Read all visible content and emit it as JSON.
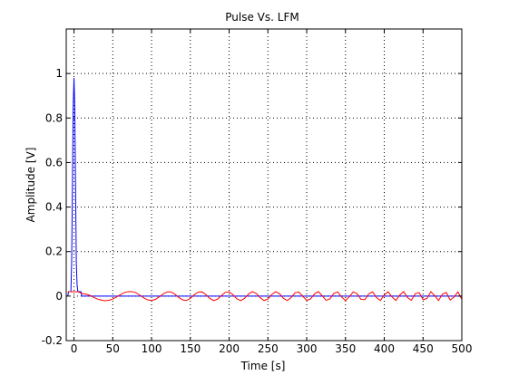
{
  "chart_data": {
    "type": "line",
    "title": "Pulse Vs. LFM",
    "xlabel": "Time [s]",
    "ylabel": "Amplitude [V]",
    "xlim": [
      -10,
      500
    ],
    "ylim": [
      -0.2,
      1.2
    ],
    "xticks": [
      0,
      50,
      100,
      150,
      200,
      250,
      300,
      350,
      400,
      450,
      500
    ],
    "yticks": [
      -0.2,
      0,
      0.2,
      0.4,
      0.6,
      0.8,
      1
    ],
    "ytick_labels": [
      "-0.2",
      "0",
      "0.2",
      "0.4",
      "0.6",
      "0.8",
      "1"
    ],
    "grid": true,
    "grid_style": "dotted",
    "legend": "none",
    "series": [
      {
        "color": "#0000ff",
        "x": [
          -8,
          -7,
          -6,
          -5,
          -4,
          -3,
          -2,
          -1,
          0,
          1,
          2,
          3,
          4,
          5,
          6,
          7,
          8,
          9,
          10,
          500
        ],
        "y": [
          0,
          0.02,
          0.02,
          0.02,
          0.02,
          0.15,
          0.5,
          0.85,
          0.98,
          0.85,
          0.5,
          0.15,
          0.05,
          0.02,
          0.02,
          0.02,
          0.02,
          0.02,
          0,
          0
        ]
      },
      {
        "color": "#ff0000",
        "x": [
          -8,
          0,
          5,
          10,
          15,
          20,
          25,
          30,
          35,
          40,
          45,
          50,
          55,
          60,
          65,
          70,
          75,
          80,
          85,
          90,
          95,
          100,
          105,
          110,
          115,
          120,
          125,
          130,
          135,
          140,
          145,
          150,
          155,
          160,
          165,
          170,
          175,
          180,
          185,
          190,
          195,
          200,
          205,
          210,
          215,
          220,
          225,
          230,
          235,
          240,
          245,
          250,
          255,
          260,
          265,
          270,
          275,
          280,
          285,
          290,
          295,
          300,
          305,
          310,
          315,
          320,
          325,
          330,
          335,
          340,
          345,
          350,
          355,
          360,
          365,
          370,
          375,
          380,
          385,
          390,
          395,
          400,
          405,
          410,
          415,
          420,
          425,
          430,
          435,
          440,
          445,
          450,
          455,
          460,
          465,
          470,
          475,
          480,
          485,
          490,
          495,
          500
        ],
        "y": [
          0.02,
          0.02,
          0.02,
          0.012,
          0.009,
          0.004,
          -0.005,
          -0.013,
          -0.018,
          -0.021,
          -0.019,
          -0.013,
          -0.004,
          0.007,
          0.016,
          0.02,
          0.02,
          0.015,
          0.004,
          -0.008,
          -0.017,
          -0.02,
          -0.015,
          -0.003,
          0.01,
          0.019,
          0.019,
          0.009,
          -0.006,
          -0.017,
          -0.02,
          -0.01,
          0.006,
          0.018,
          0.019,
          0.007,
          -0.01,
          -0.02,
          -0.014,
          0.002,
          0.017,
          0.019,
          0.006,
          -0.012,
          -0.02,
          -0.01,
          0.009,
          0.02,
          0.012,
          -0.007,
          -0.02,
          -0.013,
          0.007,
          0.02,
          0.011,
          -0.01,
          -0.02,
          -0.006,
          0.015,
          0.018,
          -0.001,
          -0.019,
          -0.013,
          0.01,
          0.02,
          0.002,
          -0.019,
          -0.012,
          0.012,
          0.019,
          -0.004,
          -0.02,
          -0.003,
          0.019,
          0.011,
          -0.015,
          -0.016,
          0.01,
          0.019,
          -0.007,
          -0.02,
          0.005,
          0.02,
          -0.004,
          -0.02,
          0.005,
          0.02,
          -0.007,
          -0.019,
          0.011,
          0.016,
          -0.016,
          -0.011,
          0.02,
          0.002,
          -0.02,
          0.009,
          0.016,
          -0.018,
          -0.004,
          0.019,
          -0.015
        ]
      }
    ]
  }
}
